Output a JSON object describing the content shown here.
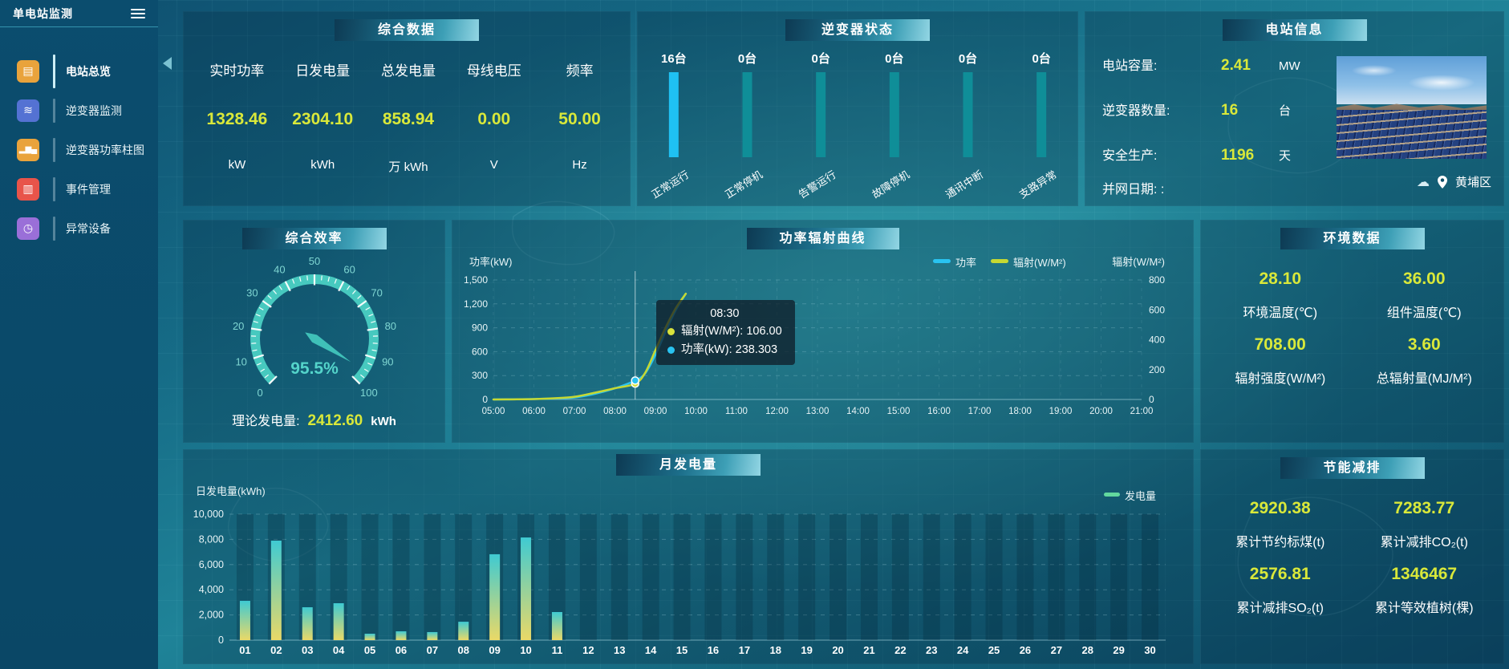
{
  "app": {
    "title": "单电站监测",
    "menu_icon": "hamburger-menu-icon"
  },
  "sidebar": {
    "items": [
      {
        "label": "电站总览",
        "icon": "station-overview-icon",
        "glyph": "▤",
        "color": "#e9a33c",
        "active": true
      },
      {
        "label": "逆变器监测",
        "icon": "inverter-monitor-icon",
        "glyph": "≋",
        "color": "#5472d3",
        "active": false
      },
      {
        "label": "逆变器功率柱图",
        "icon": "inverter-power-bars-icon",
        "glyph": "▂▆▄",
        "color": "#e9a33c",
        "active": false
      },
      {
        "label": "事件管理",
        "icon": "event-management-icon",
        "glyph": "▥",
        "color": "#e8544a",
        "active": false
      },
      {
        "label": "异常设备",
        "icon": "abnormal-device-icon",
        "glyph": "◷",
        "color": "#9a6fd8",
        "active": false
      }
    ]
  },
  "panels": {
    "summary": {
      "title": "综合数据",
      "stats": [
        {
          "label": "实时功率",
          "value": "1328.46",
          "unit": "kW"
        },
        {
          "label": "日发电量",
          "value": "2304.10",
          "unit": "kWh"
        },
        {
          "label": "总发电量",
          "value": "858.94",
          "unit": "万 kWh"
        },
        {
          "label": "母线电压",
          "value": "0.00",
          "unit": "V"
        },
        {
          "label": "频率",
          "value": "50.00",
          "unit": "Hz"
        }
      ]
    },
    "inverter_status": {
      "title": "逆变器状态"
    },
    "station_info": {
      "title": "电站信息",
      "rows": [
        {
          "label": "电站容量:",
          "value": "2.41",
          "unit": "MW"
        },
        {
          "label": "逆变器数量:",
          "value": "16",
          "unit": "台"
        },
        {
          "label": "安全生产:",
          "value": "1196",
          "unit": "天"
        },
        {
          "label": "并网日期: :",
          "value": "",
          "unit": ""
        }
      ],
      "weather_icon": "☁",
      "location": "黄埔区"
    },
    "efficiency": {
      "title": "综合效率",
      "footer_label": "理论发电量:",
      "footer_value": "2412.60",
      "footer_unit": "kWh"
    },
    "power_curve": {
      "title": "功率辐射曲线"
    },
    "environment": {
      "title": "环境数据",
      "stats": [
        {
          "value": "28.10",
          "label": "环境温度(℃)"
        },
        {
          "value": "36.00",
          "label": "组件温度(℃)"
        },
        {
          "value": "708.00",
          "label": "辐射强度(W/M²)"
        },
        {
          "value": "3.60",
          "label": "总辐射量(MJ/M²)"
        }
      ]
    },
    "monthly": {
      "title": "月发电量"
    },
    "saving": {
      "title": "节能减排",
      "stats": [
        {
          "value": "2920.38",
          "label": "累计节约标煤(t)"
        },
        {
          "value": "7283.77",
          "label": "累计减排CO₂(t)"
        },
        {
          "value": "2576.81",
          "label": "累计减排SO₂(t)"
        },
        {
          "value": "1346467",
          "label": "累计等效植树(棵)"
        }
      ]
    }
  },
  "colors": {
    "value_yellow": "#d9e83a",
    "bar_active_blue": "#1fc1f3",
    "bar_idle_teal": "#0f8e98",
    "gauge_teal": "#47c9bf",
    "power_cyan": "#29c3f1",
    "radiation_yellow": "#c6d832",
    "energy_green": "#62d89e"
  },
  "chart_data": [
    {
      "id": "inverter-status",
      "type": "bar",
      "title": "逆变器状态",
      "unit": "台",
      "categories": [
        "正常运行",
        "正常停机",
        "告警运行",
        "故障停机",
        "通讯中断",
        "支路异常"
      ],
      "values": [
        16,
        0,
        0,
        0,
        0,
        0
      ],
      "bar_colors": [
        "#1fc1f3",
        "#0f8e98",
        "#0f8e98",
        "#0f8e98",
        "#0f8e98",
        "#0f8e98"
      ]
    },
    {
      "id": "efficiency-gauge",
      "type": "gauge",
      "value": 95.5,
      "min": 0,
      "max": 100,
      "display": "95.5%",
      "tick_labels": [
        0,
        10,
        20,
        30,
        40,
        50,
        60,
        70,
        80,
        90,
        100
      ]
    },
    {
      "id": "power-radiation",
      "type": "line",
      "title": "功率辐射曲线",
      "ylabel_left": "功率(kW)",
      "ylabel_right": "辐射(W/M²)",
      "ylim_left": [
        0,
        1500
      ],
      "yticks_left": [
        0,
        300,
        600,
        900,
        1200,
        1500
      ],
      "ylim_right": [
        0,
        800
      ],
      "yticks_right": [
        0,
        200,
        400,
        600,
        800
      ],
      "x_labels": [
        "05:00",
        "06:00",
        "07:00",
        "08:00",
        "09:00",
        "10:00",
        "11:00",
        "12:00",
        "13:00",
        "14:00",
        "15:00",
        "16:00",
        "17:00",
        "18:00",
        "19:00",
        "20:00",
        "21:00"
      ],
      "x_range_hours": [
        5,
        21
      ],
      "grid": "dashed",
      "legend": [
        {
          "name": "功率",
          "color": "#29c3f1"
        },
        {
          "name": "辐射(W/M²)",
          "color": "#c6d832"
        }
      ],
      "series": [
        {
          "name": "功率",
          "axis": "left",
          "color": "#29c3f1",
          "points": [
            [
              5,
              0
            ],
            [
              5.5,
              2
            ],
            [
              6,
              5
            ],
            [
              6.5,
              12
            ],
            [
              7,
              25
            ],
            [
              7.5,
              70
            ],
            [
              8,
              140
            ],
            [
              8.5,
              238.3
            ],
            [
              8.75,
              330
            ],
            [
              9,
              560
            ],
            [
              9.25,
              850
            ],
            [
              9.5,
              1120
            ],
            [
              9.75,
              1328
            ]
          ]
        },
        {
          "name": "辐射(W/M²)",
          "axis": "right",
          "color": "#c6d832",
          "points": [
            [
              5,
              0
            ],
            [
              5.5,
              1
            ],
            [
              6,
              3
            ],
            [
              6.5,
              8
            ],
            [
              7,
              18
            ],
            [
              7.5,
              45
            ],
            [
              8,
              75
            ],
            [
              8.5,
              106
            ],
            [
              8.75,
              180
            ],
            [
              9,
              330
            ],
            [
              9.25,
              480
            ],
            [
              9.5,
              610
            ],
            [
              9.75,
              708
            ]
          ]
        }
      ],
      "crosshair_x": 8.5,
      "tooltip": {
        "time": "08:30",
        "lines": [
          {
            "color": "#d8e23c",
            "text": "辐射(W/M²): 106.00"
          },
          {
            "color": "#29c3f1",
            "text": "功率(kW): 238.303"
          }
        ]
      }
    },
    {
      "id": "monthly-energy",
      "type": "bar",
      "title": "月发电量",
      "ylabel": "日发电量(kWh)",
      "ylim": [
        0,
        10000
      ],
      "yticks": [
        0,
        2000,
        4000,
        6000,
        8000,
        10000
      ],
      "grid": "dashed",
      "legend": [
        {
          "name": "发电量",
          "color": "#62d89e"
        }
      ],
      "bar_gradient": [
        "#3fcad2",
        "#ead967"
      ],
      "categories": [
        "01",
        "02",
        "03",
        "04",
        "05",
        "06",
        "07",
        "08",
        "09",
        "10",
        "11",
        "12",
        "13",
        "14",
        "15",
        "16",
        "17",
        "18",
        "19",
        "20",
        "21",
        "22",
        "23",
        "24",
        "25",
        "26",
        "27",
        "28",
        "29",
        "30"
      ],
      "values": [
        3120,
        7900,
        2610,
        2930,
        510,
        700,
        640,
        1460,
        6820,
        8150,
        2230,
        0,
        0,
        0,
        0,
        0,
        0,
        0,
        0,
        0,
        0,
        0,
        0,
        0,
        0,
        0,
        0,
        0,
        0,
        0
      ]
    }
  ]
}
